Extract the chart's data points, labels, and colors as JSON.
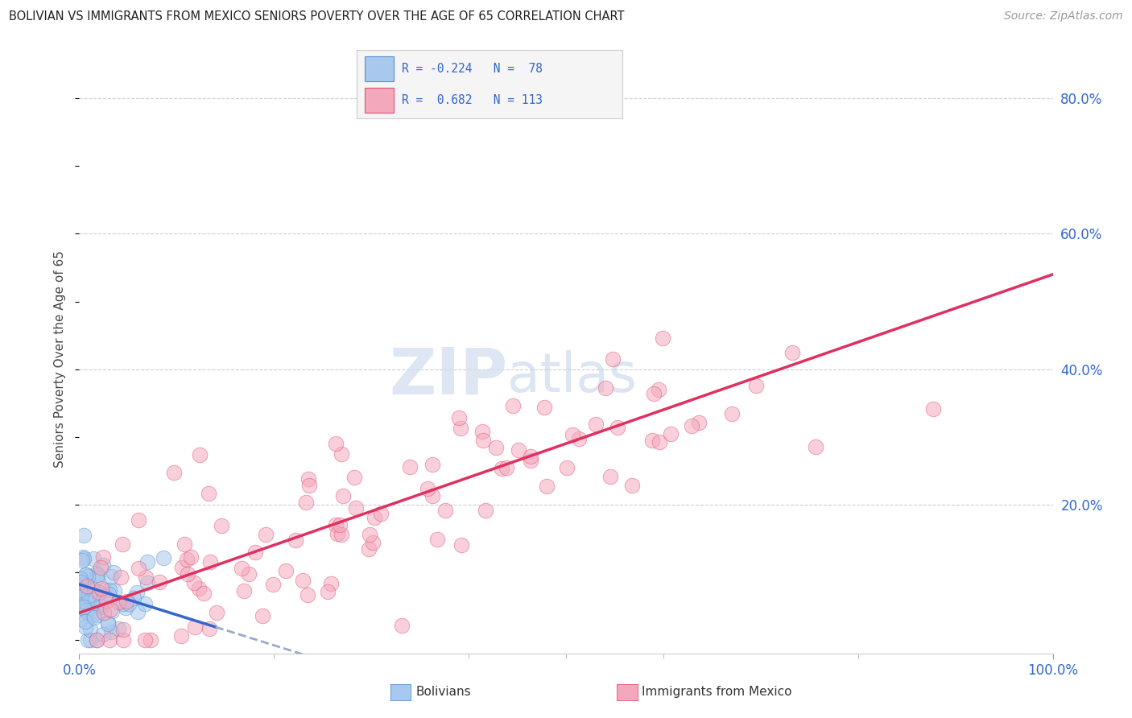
{
  "title": "BOLIVIAN VS IMMIGRANTS FROM MEXICO SENIORS POVERTY OVER THE AGE OF 65 CORRELATION CHART",
  "source": "Source: ZipAtlas.com",
  "ylabel": "Seniors Poverty Over the Age of 65",
  "xlim": [
    0,
    1.0
  ],
  "ylim": [
    -0.02,
    0.85
  ],
  "ytick_positions": [
    0.2,
    0.4,
    0.6,
    0.8
  ],
  "yticklabels_right": [
    "20.0%",
    "40.0%",
    "60.0%",
    "80.0%"
  ],
  "color_bolivian_fill": "#A8C8EE",
  "color_bolivian_edge": "#5090D0",
  "color_mexico_fill": "#F4A8BC",
  "color_mexico_edge": "#E05070",
  "color_line_bolivian": "#3366CC",
  "color_line_mexico": "#E03060",
  "color_line_ext": "#99AACC",
  "color_axis_label": "#3366CC",
  "color_grid": "#CCCCDD",
  "color_title": "#222222",
  "color_source": "#999999",
  "color_watermark": "#D0DCF0",
  "watermark_zip": "ZIP",
  "watermark_atlas": "atlas",
  "background_color": "#FFFFFF",
  "legend_bg": "#F5F5F5",
  "legend_border": "#CCCCCC",
  "bottom_label1": "Bolivians",
  "bottom_label2": "Immigrants from Mexico",
  "scatter_size": 180,
  "scatter_alpha": 0.55,
  "seed_bol": 42,
  "seed_mex": 7
}
